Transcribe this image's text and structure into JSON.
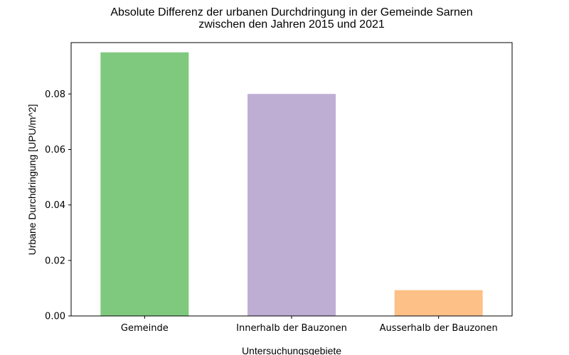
{
  "chart_data": {
    "type": "bar",
    "title_lines": [
      "Absolute Differenz der urbanen Durchdringung in der Gemeinde Sarnen",
      "zwischen den Jahren 2015 und 2021"
    ],
    "xlabel": "Untersuchungsgebiete",
    "ylabel": "Urbane Durchdringung [UPU/m^2]",
    "categories": [
      "Gemeinde",
      "Innerhalb der Bauzonen",
      "Ausserhalb der Bauzonen"
    ],
    "values": [
      0.095,
      0.08,
      0.0093
    ],
    "colors": [
      "#7fc97f",
      "#beaed4",
      "#fdc086"
    ],
    "ylim": [
      0,
      0.0985
    ],
    "yticks": [
      0.0,
      0.02,
      0.04,
      0.06,
      0.08
    ],
    "ytick_labels": [
      "0.00",
      "0.02",
      "0.04",
      "0.06",
      "0.08"
    ],
    "grid": false,
    "legend": "none"
  }
}
